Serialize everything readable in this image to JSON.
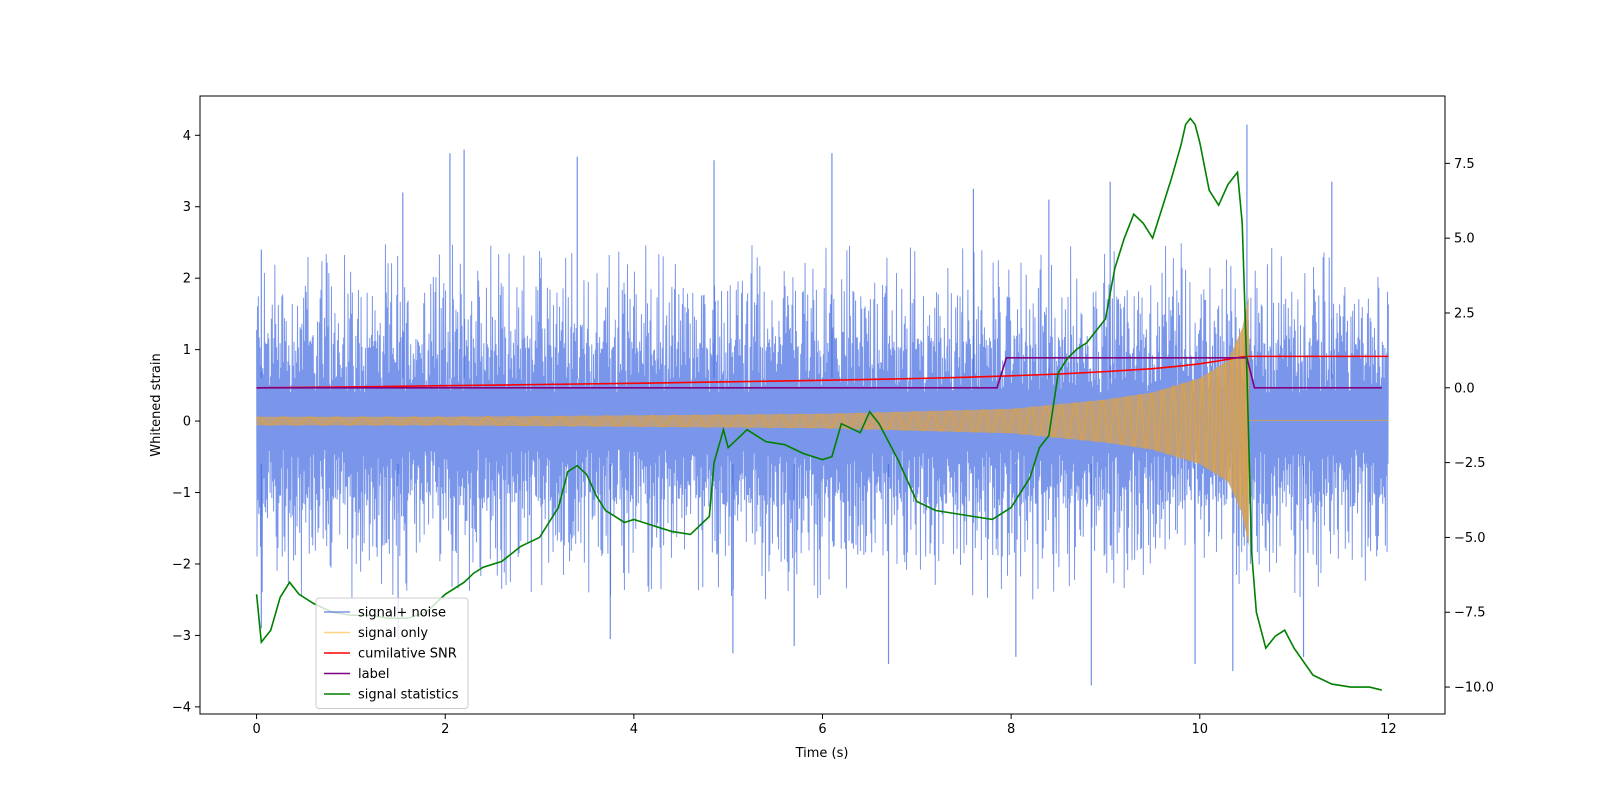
{
  "chart_data": {
    "type": "line",
    "title": "",
    "xlabel": "Time (s)",
    "ylabel_left": "Whitened strain",
    "ylabel_right": "",
    "xlim": [
      -0.6,
      12.6
    ],
    "ylim_left": [
      -4.1,
      4.55
    ],
    "ylim_right": [
      -10.9,
      9.75
    ],
    "x_ticks": [
      0,
      2,
      4,
      6,
      8,
      10,
      12
    ],
    "x_tick_labels": [
      "0",
      "2",
      "4",
      "6",
      "8",
      "10",
      "12"
    ],
    "y_left_ticks": [
      -4,
      -3,
      -2,
      -1,
      0,
      1,
      2,
      3,
      4
    ],
    "y_left_tick_labels": [
      "−4",
      "−3",
      "−2",
      "−1",
      "0",
      "1",
      "2",
      "3",
      "4"
    ],
    "y_right_ticks": [
      -10,
      -7.5,
      -5,
      -2.5,
      0,
      2.5,
      5,
      7.5
    ],
    "y_right_tick_labels": [
      "−10.0",
      "−7.5",
      "−5.0",
      "−2.5",
      "0.0",
      "2.5",
      "5.0",
      "7.5"
    ],
    "grid": false,
    "legend_position": "lower-left",
    "legend": [
      {
        "label": "signal+ noise",
        "color": "#4169e1"
      },
      {
        "label": "signal only",
        "color": "#ffa500"
      },
      {
        "label": "cumilative SNR",
        "color": "#ff0000"
      },
      {
        "label": "label",
        "color": "#800080"
      },
      {
        "label": "signal statistics",
        "color": "#008000"
      }
    ],
    "series": [
      {
        "name": "signal+ noise",
        "axis": "left",
        "color": "#4169e1",
        "kind": "noise",
        "x_range": [
          0,
          12
        ],
        "typical_max": 2.4,
        "typical_min": -2.3,
        "peaks": [
          [
            0.05,
            2.4
          ],
          [
            1.55,
            3.2
          ],
          [
            2.05,
            3.75
          ],
          [
            2.2,
            3.8
          ],
          [
            3.4,
            3.7
          ],
          [
            4.85,
            3.65
          ],
          [
            6.1,
            3.75
          ],
          [
            7.6,
            3.25
          ],
          [
            8.4,
            3.1
          ],
          [
            9.05,
            3.35
          ],
          [
            10.5,
            4.15
          ],
          [
            11.4,
            3.35
          ]
        ],
        "troughs": [
          [
            0.05,
            -2.9
          ],
          [
            1.5,
            -3.05
          ],
          [
            3.75,
            -3.05
          ],
          [
            5.05,
            -3.25
          ],
          [
            5.7,
            -3.15
          ],
          [
            6.7,
            -3.4
          ],
          [
            8.05,
            -3.3
          ],
          [
            8.85,
            -3.7
          ],
          [
            9.95,
            -3.4
          ],
          [
            10.35,
            -3.5
          ],
          [
            11.1,
            -3.3
          ]
        ]
      },
      {
        "name": "signal only",
        "axis": "left",
        "color": "#ffa500",
        "kind": "chirp",
        "x_range": [
          0,
          10.52
        ],
        "envelope": [
          [
            0,
            0.06
          ],
          [
            2,
            0.06
          ],
          [
            4,
            0.08
          ],
          [
            6,
            0.1
          ],
          [
            8,
            0.17
          ],
          [
            9,
            0.3
          ],
          [
            9.5,
            0.4
          ],
          [
            10,
            0.6
          ],
          [
            10.3,
            0.85
          ],
          [
            10.45,
            1.3
          ],
          [
            10.52,
            1.75
          ]
        ],
        "after_value": 0.01
      },
      {
        "name": "cumilative SNR",
        "axis": "right",
        "color": "#ff0000",
        "x": [
          0,
          1,
          2,
          3,
          4,
          5,
          6,
          7,
          7.5,
          8,
          8.5,
          9,
          9.5,
          9.8,
          10,
          10.2,
          10.35,
          10.45,
          10.5,
          11,
          12
        ],
        "y": [
          0,
          0.03,
          0.07,
          0.11,
          0.15,
          0.2,
          0.25,
          0.31,
          0.35,
          0.4,
          0.46,
          0.54,
          0.64,
          0.73,
          0.8,
          0.9,
          0.98,
          1.03,
          1.05,
          1.05,
          1.05
        ]
      },
      {
        "name": "label",
        "axis": "right",
        "color": "#800080",
        "x": [
          0,
          7.85,
          7.95,
          10.5,
          10.58,
          11.93
        ],
        "y": [
          0,
          0,
          1,
          1,
          0,
          0
        ]
      },
      {
        "name": "signal statistics",
        "axis": "right",
        "color": "#008000",
        "x": [
          0,
          0.05,
          0.15,
          0.25,
          0.35,
          0.45,
          0.6,
          0.8,
          1.0,
          1.2,
          1.4,
          1.6,
          1.8,
          2.0,
          2.2,
          2.3,
          2.4,
          2.6,
          2.8,
          3.0,
          3.2,
          3.3,
          3.4,
          3.5,
          3.6,
          3.7,
          3.8,
          3.9,
          4.0,
          4.2,
          4.4,
          4.6,
          4.8,
          4.85,
          4.95,
          5.0,
          5.2,
          5.4,
          5.6,
          5.8,
          6.0,
          6.1,
          6.2,
          6.4,
          6.5,
          6.6,
          6.8,
          7.0,
          7.2,
          7.4,
          7.6,
          7.8,
          8.0,
          8.2,
          8.3,
          8.4,
          8.5,
          8.6,
          8.7,
          8.8,
          9.0,
          9.1,
          9.2,
          9.3,
          9.4,
          9.5,
          9.6,
          9.7,
          9.8,
          9.85,
          9.9,
          9.95,
          10.0,
          10.1,
          10.2,
          10.3,
          10.4,
          10.45,
          10.5,
          10.55,
          10.6,
          10.7,
          10.8,
          10.9,
          11.0,
          11.2,
          11.4,
          11.6,
          11.8,
          11.93
        ],
        "y": [
          -6.9,
          -8.5,
          -8.1,
          -7.0,
          -6.5,
          -6.9,
          -7.2,
          -7.5,
          -7.6,
          -7.6,
          -7.7,
          -7.7,
          -7.5,
          -6.9,
          -6.5,
          -6.2,
          -6.0,
          -5.8,
          -5.3,
          -5.0,
          -4.0,
          -2.8,
          -2.6,
          -2.9,
          -3.6,
          -4.1,
          -4.3,
          -4.5,
          -4.4,
          -4.6,
          -4.8,
          -4.9,
          -4.3,
          -2.5,
          -1.4,
          -2.0,
          -1.4,
          -1.8,
          -1.9,
          -2.2,
          -2.4,
          -2.3,
          -1.2,
          -1.5,
          -0.8,
          -1.2,
          -2.4,
          -3.8,
          -4.1,
          -4.2,
          -4.3,
          -4.4,
          -4.0,
          -3.0,
          -2.0,
          -1.6,
          0.5,
          1.0,
          1.3,
          1.5,
          2.3,
          4.0,
          5.0,
          5.8,
          5.5,
          5.0,
          6.0,
          7.0,
          8.1,
          8.8,
          9.0,
          8.8,
          8.2,
          6.6,
          6.1,
          6.8,
          7.2,
          5.5,
          0.5,
          -5.5,
          -7.5,
          -8.7,
          -8.3,
          -8.1,
          -8.7,
          -9.6,
          -9.9,
          -10.0,
          -10.0,
          -10.1
        ]
      }
    ]
  }
}
